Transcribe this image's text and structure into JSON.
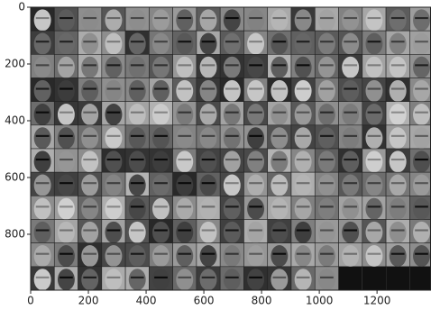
{
  "chart_data": {
    "type": "image",
    "xlim": [
      0,
      1387
    ],
    "ylim": [
      997,
      0
    ],
    "xticks": [
      0,
      200,
      400,
      600,
      800,
      1000,
      1200
    ],
    "yticks": [
      0,
      200,
      400,
      600,
      800
    ]
  }
}
